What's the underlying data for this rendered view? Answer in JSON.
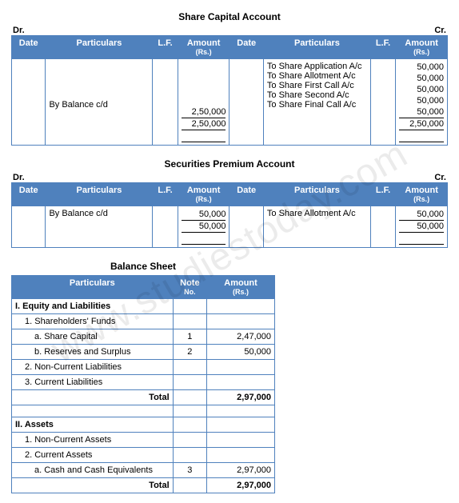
{
  "watermark": "www.studiestoday.com",
  "accounts": [
    {
      "title": "Share Capital Account",
      "dr_label": "Dr.",
      "cr_label": "Cr.",
      "headers": {
        "date": "Date",
        "particulars": "Particulars",
        "lf": "L.F.",
        "amount": "Amount",
        "amount_sub": "(Rs.)"
      },
      "dr_rows": [
        {
          "date": "",
          "part": "By Balance c/d",
          "lf": "",
          "amount": "2,50,000"
        }
      ],
      "dr_total": "2,50,000",
      "cr_rows": [
        {
          "date": "",
          "part": "To Share Application A/c",
          "lf": "",
          "amount": "50,000"
        },
        {
          "date": "",
          "part": "To Share Allotment A/c",
          "lf": "",
          "amount": "50,000"
        },
        {
          "date": "",
          "part": "To Share First Call A/c",
          "lf": "",
          "amount": "50,000"
        },
        {
          "date": "",
          "part": "To Share Second A/c",
          "lf": "",
          "amount": "50,000"
        },
        {
          "date": "",
          "part": "To Share Final Call A/c",
          "lf": "",
          "amount": "50,000"
        }
      ],
      "cr_total": "2,50,000"
    },
    {
      "title": "Securities Premium Account",
      "dr_label": "Dr.",
      "cr_label": "Cr.",
      "headers": {
        "date": "Date",
        "particulars": "Particulars",
        "lf": "L.F.",
        "amount": "Amount",
        "amount_sub": "(Rs.)"
      },
      "dr_rows": [
        {
          "date": "",
          "part": "By Balance c/d",
          "lf": "",
          "amount": "50,000"
        }
      ],
      "dr_total": "50,000",
      "cr_rows": [
        {
          "date": "",
          "part": "To Share Allotment A/c",
          "lf": "",
          "amount": "50,000"
        }
      ],
      "cr_total": "50,000"
    }
  ],
  "balance_sheet": {
    "title": "Balance Sheet",
    "headers": {
      "particulars": "Particulars",
      "note": "Note",
      "note_sub": "No.",
      "amount": "Amount",
      "amount_sub": "(Rs.)"
    },
    "sections": [
      {
        "heading": "I. Equity and Liabilities",
        "lines": [
          {
            "text": "1. Shareholders' Funds",
            "indent": 1,
            "note": "",
            "amount": ""
          },
          {
            "text": "a. Share Capital",
            "indent": 2,
            "note": "1",
            "amount": "2,47,000"
          },
          {
            "text": "b. Reserves and Surplus",
            "indent": 2,
            "note": "2",
            "amount": "50,000"
          },
          {
            "text": "2. Non-Current Liabilities",
            "indent": 1,
            "note": "",
            "amount": ""
          },
          {
            "text": "3. Current Liabilities",
            "indent": 1,
            "note": "",
            "amount": ""
          }
        ],
        "total_label": "Total",
        "total_amount": "2,97,000"
      },
      {
        "heading": "II. Assets",
        "lines": [
          {
            "text": "1. Non-Current Assets",
            "indent": 1,
            "note": "",
            "amount": ""
          },
          {
            "text": "2. Current Assets",
            "indent": 1,
            "note": "",
            "amount": ""
          },
          {
            "text": "a. Cash and Cash Equivalents",
            "indent": 2,
            "note": "3",
            "amount": "2,97,000"
          }
        ],
        "total_label": "Total",
        "total_amount": "2,97,000"
      }
    ]
  },
  "col_widths": {
    "ledger": {
      "date": 38,
      "part": 120,
      "lf": 28,
      "amt": 58
    },
    "bs": {
      "part": 190,
      "note": 40,
      "amt": 80
    }
  },
  "colors": {
    "header_bg": "#4f81bd",
    "header_fg": "#ffffff",
    "border": "#4f81bd"
  }
}
